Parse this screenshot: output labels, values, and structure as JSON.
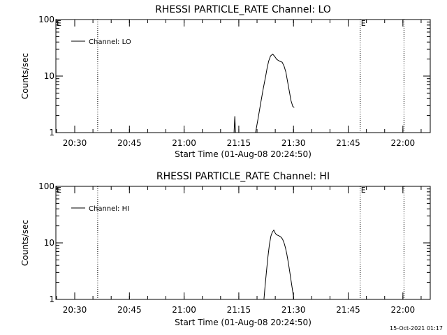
{
  "footer": {
    "timestamp": "15-Oct-2021 01:17"
  },
  "chart_data": [
    {
      "type": "line",
      "title": "RHESSI PARTICLE_RATE Channel: LO",
      "xlabel": "Start Time (01-Aug-08 20:24:50)",
      "ylabel": "Counts/sec",
      "yscale": "log",
      "ylim": [
        1,
        100
      ],
      "y_ticks": [
        {
          "value": 1,
          "label": "1"
        },
        {
          "value": 10,
          "label": "10"
        },
        {
          "value": 100,
          "label": "100"
        }
      ],
      "x_unit": "minutes since 00:00 (01-Aug-08)",
      "xlim": [
        1224.83,
        1327.5
      ],
      "x_ticks": [
        {
          "value": 1230,
          "label": "20:30"
        },
        {
          "value": 1245,
          "label": "20:45"
        },
        {
          "value": 1260,
          "label": "21:00"
        },
        {
          "value": 1275,
          "label": "21:15"
        },
        {
          "value": 1290,
          "label": "21:30"
        },
        {
          "value": 1305,
          "label": "21:45"
        },
        {
          "value": 1320,
          "label": "22:00"
        }
      ],
      "markers": [
        {
          "x": 1236.3,
          "label": ""
        },
        {
          "x": 1308.3,
          "label": "E"
        },
        {
          "x": 1320.3,
          "label": ""
        }
      ],
      "edge_label": "E",
      "legend": {
        "position": "top-left",
        "entries": [
          "Channel: LO"
        ]
      },
      "series": [
        {
          "name": "Channel: LO",
          "segments": [
            {
              "x": [
                1273.5,
                1273.7,
                1273.9,
                1274.1,
                1274.3
              ],
              "y": [
                1,
                1.0,
                1.95,
                1.0,
                1
              ]
            },
            {
              "x": [
                1279.6,
                1280.3,
                1281.0,
                1281.7,
                1282.4,
                1282.8,
                1283.2,
                1283.7,
                1284.3,
                1284.9,
                1285.4,
                1285.8,
                1286.3,
                1286.9,
                1287.4,
                1287.9,
                1288.3,
                1288.8,
                1289.3,
                1289.8,
                1290.2
              ],
              "y": [
                1,
                1.8,
                3.3,
                6.0,
                10.3,
                14.2,
                18.4,
                22.6,
                24.5,
                22.0,
                19.8,
                19.0,
                18.2,
                17.6,
                15.0,
                11.8,
                8.4,
                5.6,
                3.7,
                2.9,
                2.8
              ]
            }
          ]
        }
      ]
    },
    {
      "type": "line",
      "title": "RHESSI PARTICLE_RATE Channel: HI",
      "xlabel": "Start Time (01-Aug-08 20:24:50)",
      "ylabel": "Counts/sec",
      "yscale": "log",
      "ylim": [
        1,
        100
      ],
      "y_ticks": [
        {
          "value": 1,
          "label": "1"
        },
        {
          "value": 10,
          "label": "10"
        },
        {
          "value": 100,
          "label": "100"
        }
      ],
      "x_unit": "minutes since 00:00 (01-Aug-08)",
      "xlim": [
        1224.83,
        1327.5
      ],
      "x_ticks": [
        {
          "value": 1230,
          "label": "20:30"
        },
        {
          "value": 1245,
          "label": "20:45"
        },
        {
          "value": 1260,
          "label": "21:00"
        },
        {
          "value": 1275,
          "label": "21:15"
        },
        {
          "value": 1290,
          "label": "21:30"
        },
        {
          "value": 1305,
          "label": "21:45"
        },
        {
          "value": 1320,
          "label": "22:00"
        }
      ],
      "markers": [
        {
          "x": 1236.3,
          "label": ""
        },
        {
          "x": 1308.3,
          "label": "E"
        },
        {
          "x": 1320.3,
          "label": ""
        }
      ],
      "edge_label": "E",
      "legend": {
        "position": "top-left",
        "entries": [
          "Channel: HI"
        ]
      },
      "series": [
        {
          "name": "Channel: HI",
          "segments": [
            {
              "x": [
                1281.9,
                1282.2,
                1282.6,
                1283.0,
                1283.4,
                1283.8,
                1284.2,
                1284.6,
                1284.9,
                1285.3,
                1285.7,
                1286.1,
                1286.6,
                1287.0,
                1287.4,
                1287.8,
                1288.2,
                1288.6,
                1289.0,
                1289.4,
                1289.8,
                1290.1
              ],
              "y": [
                1,
                1.7,
                3.2,
                5.8,
                9.5,
                13.2,
                15.5,
                16.8,
                15.2,
                14.0,
                13.6,
                13.2,
                12.6,
                11.6,
                10.0,
                8.2,
                6.2,
                4.4,
                3.0,
                2.0,
                1.35,
                1
              ]
            }
          ]
        }
      ]
    }
  ]
}
